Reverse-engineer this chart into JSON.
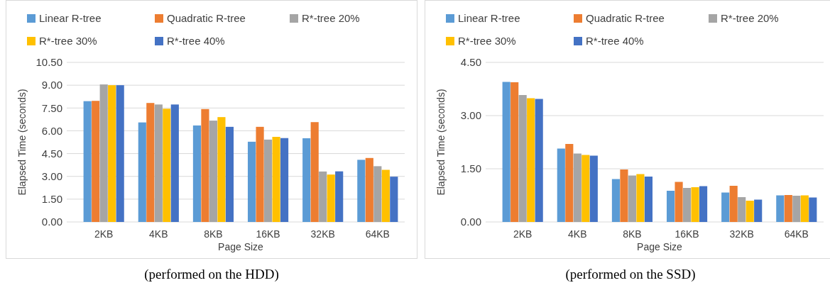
{
  "chart_data": [
    {
      "type": "bar",
      "categories": [
        "2KB",
        "4KB",
        "8KB",
        "16KB",
        "32KB",
        "64KB"
      ],
      "xlabel": "Page Size",
      "ylabel": "Elapsed Time (seconds)",
      "ylim": [
        0,
        10.5
      ],
      "yticks": [
        {
          "value": 0,
          "label": "0.00"
        },
        {
          "value": 1.5,
          "label": "1.50"
        },
        {
          "value": 3,
          "label": "3.00"
        },
        {
          "value": 4.5,
          "label": "4.50"
        },
        {
          "value": 6,
          "label": "6.00"
        },
        {
          "value": 7.5,
          "label": "7.50"
        },
        {
          "value": 9,
          "label": "9.00"
        },
        {
          "value": 10.5,
          "label": "10.50"
        }
      ],
      "grid": "y",
      "legend": "top",
      "annotations": [
        "(performed on the HDD)"
      ],
      "series": [
        {
          "name": "Linear R-tree",
          "color": "#5b9bd5",
          "values": [
            7.95,
            6.55,
            6.35,
            5.28,
            5.51,
            4.09
          ]
        },
        {
          "name": "Quadratic R-tree",
          "color": "#ed7d31",
          "values": [
            7.97,
            7.83,
            7.43,
            6.26,
            6.57,
            4.21
          ]
        },
        {
          "name": "R*-tree 20%",
          "color": "#a5a5a5",
          "values": [
            9.05,
            7.73,
            6.67,
            5.42,
            3.32,
            3.67
          ]
        },
        {
          "name": "R*-tree 30%",
          "color": "#ffc000",
          "values": [
            9.0,
            7.45,
            6.9,
            5.6,
            3.12,
            3.43
          ]
        },
        {
          "name": "R*-tree 40%",
          "color": "#4472c4",
          "values": [
            9.0,
            7.73,
            6.26,
            5.52,
            3.33,
            2.98
          ]
        }
      ]
    },
    {
      "type": "bar",
      "categories": [
        "2KB",
        "4KB",
        "8KB",
        "16KB",
        "32KB",
        "64KB"
      ],
      "xlabel": "Page Size",
      "ylabel": "Elapsed Time (seconds)",
      "ylim": [
        0,
        4.5
      ],
      "yticks": [
        {
          "value": 0,
          "label": "0.00"
        },
        {
          "value": 1.5,
          "label": "1.50"
        },
        {
          "value": 3,
          "label": "3.00"
        },
        {
          "value": 4.5,
          "label": "4.50"
        }
      ],
      "grid": "y",
      "legend": "top",
      "annotations": [
        "(performed on the SSD)"
      ],
      "series": [
        {
          "name": "Linear R-tree",
          "color": "#5b9bd5",
          "values": [
            3.95,
            2.07,
            1.21,
            0.88,
            0.83,
            0.75
          ]
        },
        {
          "name": "Quadratic R-tree",
          "color": "#ed7d31",
          "values": [
            3.94,
            2.2,
            1.48,
            1.13,
            1.02,
            0.76
          ]
        },
        {
          "name": "R*-tree 20%",
          "color": "#a5a5a5",
          "values": [
            3.58,
            1.93,
            1.31,
            0.96,
            0.7,
            0.74
          ]
        },
        {
          "name": "R*-tree 30%",
          "color": "#ffc000",
          "values": [
            3.49,
            1.89,
            1.35,
            0.98,
            0.6,
            0.75
          ]
        },
        {
          "name": "R*-tree 40%",
          "color": "#4472c4",
          "values": [
            3.47,
            1.87,
            1.28,
            1.01,
            0.63,
            0.69
          ]
        }
      ]
    }
  ]
}
